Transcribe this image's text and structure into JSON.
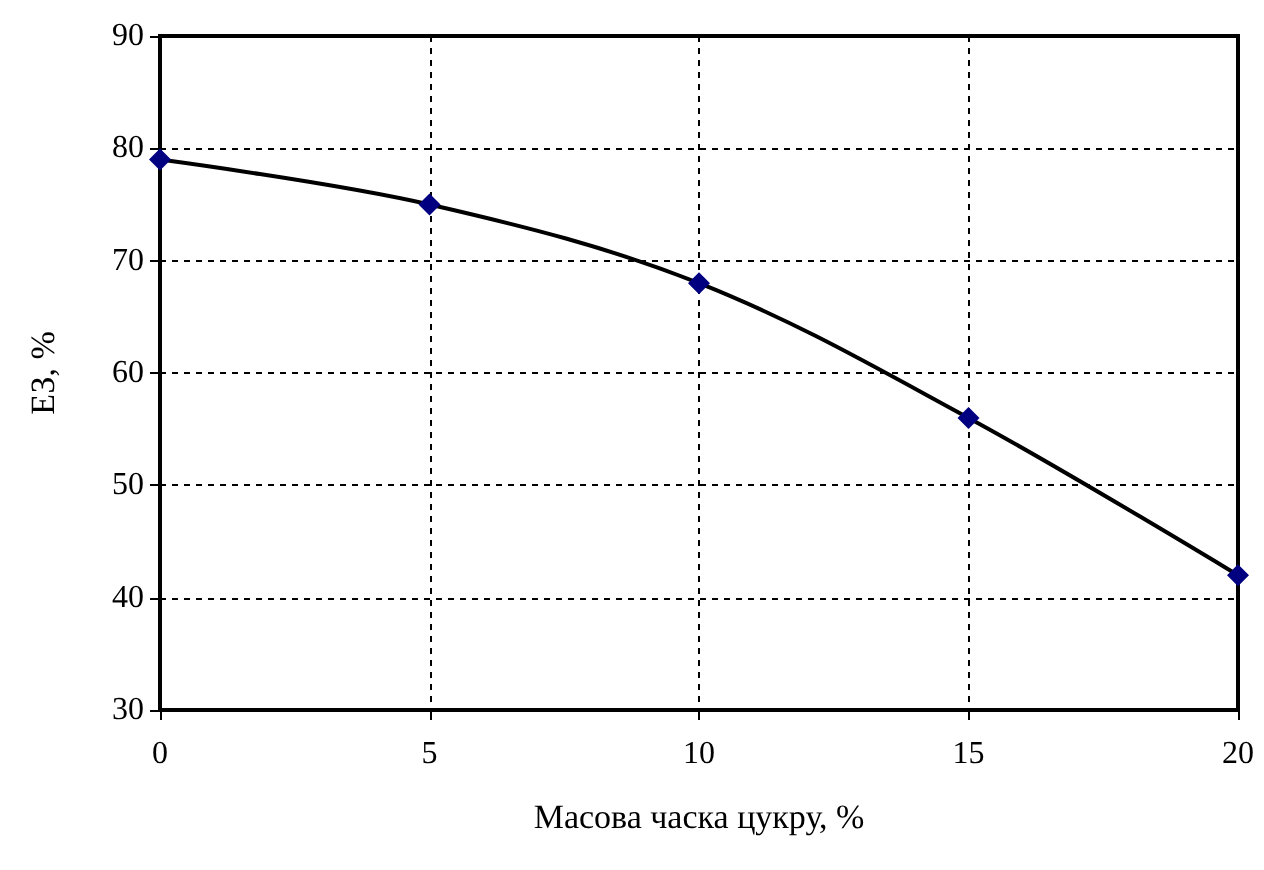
{
  "chart_data": {
    "type": "line",
    "xlabel": "Масова часка цукру, %",
    "ylabel": "ЕЗ, %",
    "x": [
      0,
      5,
      10,
      15,
      20
    ],
    "series": [
      {
        "color": "#000080",
        "values": [
          79,
          75,
          68,
          56,
          42
        ]
      }
    ],
    "xlim": [
      0,
      20
    ],
    "xticks": [
      0,
      5,
      10,
      15,
      20
    ],
    "ylim": [
      30,
      90
    ],
    "yticks": [
      30,
      40,
      50,
      60,
      70,
      80,
      90
    ],
    "grid": true,
    "marker": "diamond",
    "line_style": "solid"
  }
}
